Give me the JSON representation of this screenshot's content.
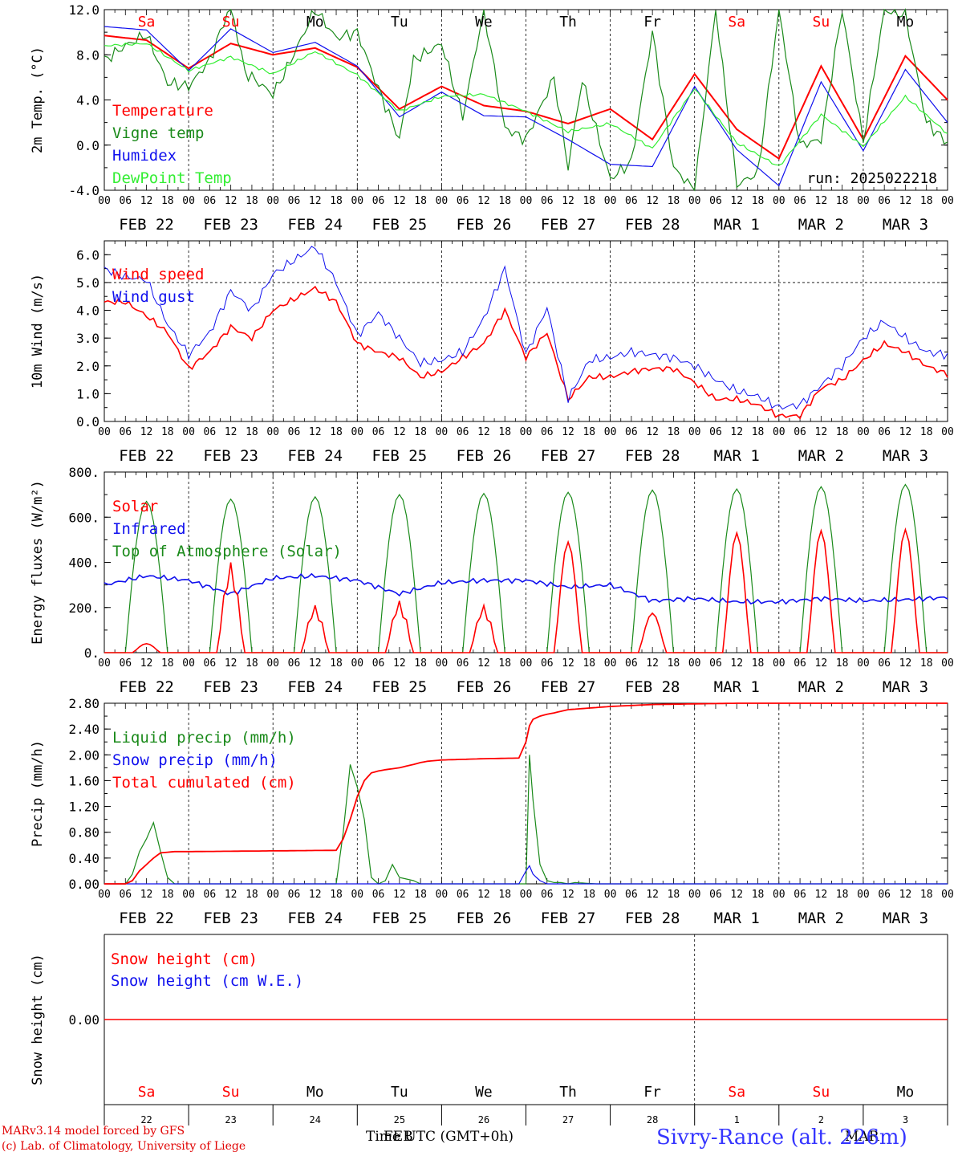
{
  "colors": {
    "red": "#ff0000",
    "darkred": "#e00000",
    "green": "#1a8a1a",
    "blue": "#1010ee",
    "lightgreen": "#33ee33",
    "darkgreen": "#1a7a1a"
  },
  "day_names": [
    "Sa",
    "Su",
    "Mo",
    "Tu",
    "We",
    "Th",
    "Fr",
    "Sa",
    "Su",
    "Mo"
  ],
  "day_weekend": [
    true,
    true,
    false,
    false,
    false,
    false,
    false,
    true,
    true,
    false
  ],
  "date_labels": [
    "FEB 22",
    "FEB 23",
    "FEB 24",
    "FEB 25",
    "FEB 26",
    "FEB 27",
    "FEB 28",
    "MAR  1",
    "MAR  2",
    "MAR  3"
  ],
  "hour_labels": [
    "00",
    "06",
    "12",
    "18"
  ],
  "day_numbers": [
    "22",
    "23",
    "24",
    "25",
    "26",
    "27",
    "28",
    "1",
    "2",
    "3"
  ],
  "run_label": "run: 2025022218",
  "x_axis_label": "Time UTC (GMT+0h)",
  "month_label": "FEB",
  "month_label_2": "MAR",
  "footer": {
    "line1": "MARv3.14 model forced by GFS",
    "line2": "(c) Lab. of Climatology, University of Liege",
    "station": "Sivry-Rance (alt. 226m)"
  },
  "chart_data": [
    {
      "type": "line",
      "ylabel": "2m Temp. (°C)",
      "ylim": [
        -4,
        12
      ],
      "ticks": [
        "12.0",
        "8.0",
        "4.0",
        "0.0",
        "-4.0"
      ],
      "x_range_hours": [
        0,
        240
      ],
      "series": [
        {
          "name": "Temperature",
          "color": "#ff0000",
          "x": [
            0,
            12,
            24,
            36,
            48,
            60,
            72,
            84,
            96,
            108,
            120,
            132,
            144,
            156,
            168,
            180,
            192,
            204,
            216,
            228,
            240
          ],
          "values": [
            9.7,
            9.3,
            6.8,
            9.0,
            8.0,
            8.6,
            6.9,
            3.2,
            5.2,
            3.5,
            3.0,
            1.9,
            3.2,
            0.5,
            6.3,
            1.4,
            -1.2,
            7.0,
            0.5,
            7.9,
            4.0
          ]
        },
        {
          "name": "Vigne temp",
          "color": "#1a8a1a",
          "x": [
            0,
            6,
            12,
            18,
            24,
            30,
            36,
            40,
            48,
            52,
            60,
            66,
            72,
            78,
            84,
            88,
            96,
            102,
            108,
            114,
            120,
            128,
            132,
            136,
            144,
            150,
            156,
            162,
            168,
            174,
            180,
            186,
            192,
            198,
            204,
            210,
            216,
            222,
            228,
            234,
            240
          ],
          "values": [
            7.5,
            8.8,
            9.8,
            5.5,
            5.2,
            7.5,
            12.5,
            6.5,
            4.5,
            6.8,
            12.0,
            9.5,
            10.0,
            5.0,
            0.5,
            7.5,
            9.0,
            2.5,
            12.0,
            1.5,
            0.5,
            6.0,
            -2.0,
            5.8,
            -3.0,
            -1.5,
            10.0,
            -2.0,
            -4.0,
            12.0,
            -3.5,
            -2.5,
            12.0,
            0.0,
            0.5,
            12.0,
            0.3,
            12.0,
            11.5,
            2.0,
            0.2
          ]
        },
        {
          "name": "Humidex",
          "color": "#1010ee",
          "x": [
            0,
            12,
            24,
            36,
            48,
            60,
            72,
            84,
            96,
            108,
            120,
            132,
            144,
            156,
            168,
            180,
            192,
            204,
            216,
            228,
            240
          ],
          "values": [
            10.5,
            10.2,
            6.6,
            10.3,
            8.2,
            9.1,
            7.0,
            2.5,
            4.7,
            2.6,
            2.5,
            0.5,
            -1.7,
            -1.9,
            5.2,
            -0.4,
            -3.6,
            5.6,
            -0.5,
            6.7,
            2.0
          ]
        },
        {
          "name": "DewPoint Temp",
          "color": "#33ee33",
          "x": [
            0,
            12,
            24,
            36,
            48,
            60,
            72,
            84,
            96,
            108,
            120,
            132,
            144,
            156,
            168,
            180,
            192,
            204,
            216,
            228,
            240
          ],
          "values": [
            8.8,
            9.0,
            6.6,
            7.8,
            6.3,
            8.3,
            6.2,
            3.0,
            4.3,
            4.5,
            3.0,
            1.2,
            1.9,
            -0.3,
            5.0,
            0.2,
            -1.9,
            2.7,
            -0.1,
            4.3,
            1.0
          ]
        }
      ]
    },
    {
      "type": "line",
      "ylabel": "10m Wind (m/s)",
      "ylim": [
        0,
        6.5
      ],
      "ticks": [
        "6.0",
        "5.0",
        "4.0",
        "3.0",
        "2.0",
        "1.0",
        "0.0"
      ],
      "x_range_hours": [
        0,
        240
      ],
      "series": [
        {
          "name": "Wind speed",
          "color": "#ff0000",
          "x": [
            0,
            6,
            12,
            18,
            24,
            30,
            36,
            42,
            48,
            60,
            66,
            72,
            78,
            84,
            90,
            96,
            102,
            108,
            114,
            120,
            126,
            132,
            138,
            144,
            150,
            156,
            162,
            168,
            174,
            180,
            186,
            192,
            198,
            204,
            210,
            216,
            222,
            228,
            234,
            240
          ],
          "values": [
            4.3,
            4.3,
            3.8,
            3.2,
            1.9,
            2.5,
            3.4,
            3.0,
            4.0,
            4.8,
            4.3,
            2.8,
            2.5,
            2.3,
            1.6,
            1.8,
            2.3,
            2.8,
            4.0,
            2.3,
            3.2,
            0.8,
            1.6,
            1.6,
            1.8,
            1.9,
            1.9,
            1.4,
            0.8,
            0.8,
            0.6,
            0.2,
            0.2,
            1.2,
            1.5,
            2.2,
            2.8,
            2.5,
            2.0,
            1.7
          ]
        },
        {
          "name": "Wind gust",
          "color": "#1010ee",
          "x": [
            0,
            6,
            12,
            18,
            24,
            30,
            36,
            42,
            48,
            60,
            66,
            72,
            78,
            84,
            90,
            96,
            102,
            108,
            114,
            120,
            126,
            132,
            138,
            144,
            150,
            156,
            162,
            168,
            174,
            180,
            186,
            192,
            198,
            204,
            210,
            216,
            222,
            228,
            234,
            240
          ],
          "values": [
            5.5,
            5.2,
            5.1,
            3.5,
            2.4,
            3.2,
            4.7,
            4.0,
            5.3,
            6.3,
            5.0,
            3.1,
            3.9,
            3.0,
            2.1,
            2.2,
            2.5,
            3.7,
            5.5,
            2.4,
            4.1,
            0.8,
            2.2,
            2.3,
            2.5,
            2.4,
            2.3,
            2.0,
            1.5,
            1.1,
            0.9,
            0.5,
            0.6,
            1.3,
            2.0,
            3.0,
            3.6,
            3.0,
            2.5,
            2.4
          ]
        }
      ]
    },
    {
      "type": "line",
      "ylabel": "Energy fluxes (W/m²)",
      "ylim": [
        0,
        800
      ],
      "ticks": [
        "800.",
        "600.",
        "400.",
        "200.",
        "0."
      ],
      "x_range_hours": [
        0,
        240
      ],
      "series": [
        {
          "name": "Solar",
          "peaks": [
            40,
            400,
            210,
            230,
            210,
            490,
            175,
            530,
            540,
            545
          ],
          "color": "#ff0000"
        },
        {
          "name": "Infrared",
          "color": "#1010ee",
          "x": [
            0,
            12,
            24,
            36,
            48,
            60,
            72,
            84,
            96,
            108,
            120,
            132,
            144,
            156,
            168,
            180,
            192,
            204,
            216,
            228,
            240
          ],
          "values": [
            300,
            340,
            320,
            260,
            330,
            340,
            320,
            260,
            310,
            320,
            320,
            290,
            300,
            230,
            240,
            225,
            225,
            240,
            230,
            235,
            245
          ]
        },
        {
          "name": "Top of Atmosphere (Solar)",
          "peaks": [
            670,
            680,
            690,
            700,
            705,
            710,
            720,
            725,
            735,
            745
          ],
          "color": "#1a8a1a"
        }
      ]
    },
    {
      "type": "line",
      "ylabel": "Precip (mm/h)",
      "ylim": [
        0,
        2.8
      ],
      "ticks": [
        "2.80",
        "2.40",
        "2.00",
        "1.60",
        "1.20",
        "0.80",
        "0.40",
        "0.00"
      ],
      "x_range_hours": [
        0,
        240
      ],
      "series": [
        {
          "name": "Liquid precip (mm/h)",
          "color": "#1a8a1a",
          "x": [
            0,
            6,
            8,
            10,
            12,
            14,
            16,
            18,
            20,
            24,
            66,
            68,
            70,
            72,
            74,
            76,
            78,
            80,
            82,
            84,
            88,
            90,
            92,
            94,
            118,
            120,
            121,
            122,
            124,
            126,
            128,
            130,
            132,
            134,
            140,
            144,
            240
          ],
          "values": [
            0,
            0,
            0.15,
            0.5,
            0.7,
            0.95,
            0.5,
            0.1,
            0,
            0,
            0,
            0.8,
            1.85,
            1.5,
            1.0,
            0.1,
            0,
            0.05,
            0.3,
            0.1,
            0.05,
            0,
            0,
            0,
            0,
            0,
            2.0,
            1.3,
            0.3,
            0.05,
            0.02,
            0.02,
            0,
            0.02,
            0,
            0,
            0
          ]
        },
        {
          "name": "Snow precip (mm/h)",
          "color": "#1010ee",
          "x": [
            0,
            118,
            120,
            121,
            122,
            124,
            126,
            144,
            240
          ],
          "values": [
            0,
            0,
            0.2,
            0.28,
            0.15,
            0.05,
            0,
            0,
            0
          ]
        },
        {
          "name": "Total cumulated (cm)",
          "color": "#ff0000",
          "x": [
            0,
            6,
            8,
            10,
            12,
            14,
            16,
            18,
            20,
            24,
            66,
            68,
            70,
            72,
            74,
            76,
            78,
            80,
            84,
            88,
            90,
            92,
            96,
            108,
            118,
            120,
            121,
            122,
            124,
            126,
            128,
            132,
            144,
            156,
            168,
            180,
            192,
            204,
            216,
            228,
            240
          ],
          "values": [
            0,
            0,
            0.05,
            0.2,
            0.3,
            0.4,
            0.48,
            0.49,
            0.5,
            0.5,
            0.52,
            0.7,
            1.0,
            1.35,
            1.6,
            1.72,
            1.75,
            1.77,
            1.8,
            1.85,
            1.88,
            1.9,
            1.92,
            1.94,
            1.95,
            2.2,
            2.45,
            2.55,
            2.6,
            2.63,
            2.65,
            2.7,
            2.75,
            2.78,
            2.79,
            2.8,
            2.8,
            2.8,
            2.8,
            2.8,
            2.8
          ]
        }
      ]
    },
    {
      "type": "line",
      "ylabel": "Snow height (cm)",
      "ticks": [
        "0.00"
      ],
      "series": [
        {
          "name": "Snow height (cm)",
          "color": "#ff0000",
          "values": [
            0,
            0
          ]
        },
        {
          "name": "Snow height (cm W.E.)",
          "color": "#1010ee",
          "values": [
            0,
            0
          ]
        }
      ]
    }
  ]
}
